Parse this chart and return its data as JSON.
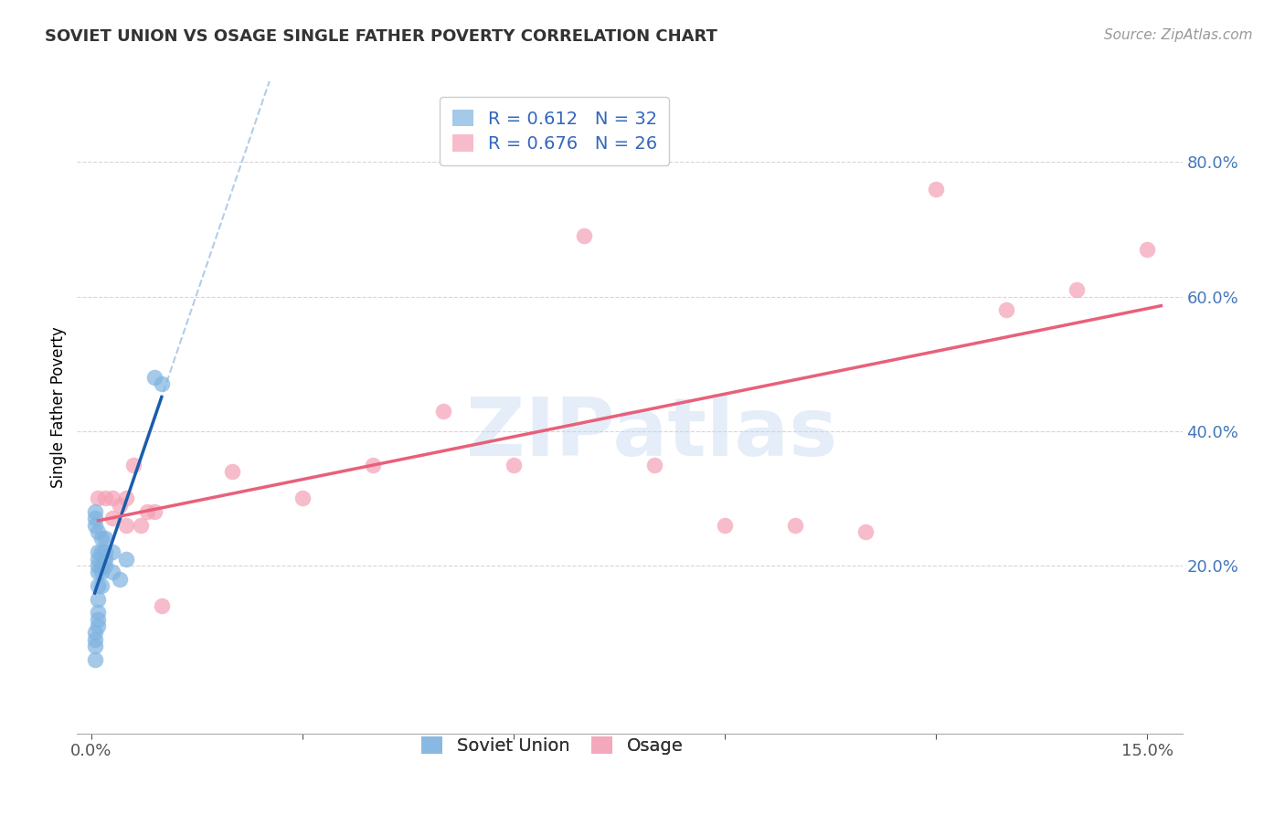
{
  "title": "SOVIET UNION VS OSAGE SINGLE FATHER POVERTY CORRELATION CHART",
  "source": "Source: ZipAtlas.com",
  "ylabel": "Single Father Poverty",
  "y_tick_vals": [
    0.2,
    0.4,
    0.6,
    0.8
  ],
  "y_tick_labels": [
    "20.0%",
    "40.0%",
    "60.0%",
    "80.0%"
  ],
  "x_tick_vals": [
    0.0,
    0.03,
    0.06,
    0.09,
    0.12,
    0.15
  ],
  "x_tick_labels": [
    "0.0%",
    "",
    "",
    "",
    "",
    "15.0%"
  ],
  "xlim": [
    -0.002,
    0.155
  ],
  "ylim": [
    -0.05,
    0.92
  ],
  "watermark": "ZIPatlas",
  "legend_R1": "R = 0.612",
  "legend_N1": "N = 32",
  "legend_R2": "R = 0.676",
  "legend_N2": "N = 26",
  "soviet_color": "#7EB3E0",
  "osage_color": "#F4A0B5",
  "soviet_line_color": "#1A5DAB",
  "osage_line_color": "#E8607A",
  "soviet_x": [
    0.0005,
    0.0005,
    0.0005,
    0.0005,
    0.0005,
    0.0005,
    0.0005,
    0.001,
    0.001,
    0.001,
    0.001,
    0.001,
    0.001,
    0.001,
    0.001,
    0.001,
    0.001,
    0.0015,
    0.0015,
    0.0015,
    0.0015,
    0.0015,
    0.002,
    0.002,
    0.002,
    0.002,
    0.003,
    0.003,
    0.004,
    0.005,
    0.009,
    0.01
  ],
  "soviet_y": [
    0.26,
    0.27,
    0.28,
    0.06,
    0.08,
    0.09,
    0.1,
    0.25,
    0.22,
    0.21,
    0.2,
    0.19,
    0.17,
    0.15,
    0.13,
    0.12,
    0.11,
    0.24,
    0.22,
    0.2,
    0.19,
    0.17,
    0.24,
    0.22,
    0.21,
    0.2,
    0.22,
    0.19,
    0.18,
    0.21,
    0.48,
    0.47
  ],
  "osage_x": [
    0.001,
    0.002,
    0.003,
    0.003,
    0.004,
    0.005,
    0.005,
    0.006,
    0.007,
    0.008,
    0.009,
    0.01,
    0.02,
    0.03,
    0.04,
    0.05,
    0.06,
    0.07,
    0.08,
    0.09,
    0.1,
    0.11,
    0.12,
    0.13,
    0.14,
    0.15
  ],
  "osage_y": [
    0.3,
    0.3,
    0.27,
    0.3,
    0.29,
    0.3,
    0.26,
    0.35,
    0.26,
    0.28,
    0.28,
    0.14,
    0.34,
    0.3,
    0.35,
    0.43,
    0.35,
    0.69,
    0.35,
    0.26,
    0.26,
    0.25,
    0.76,
    0.58,
    0.61,
    0.67
  ],
  "background_color": "#FFFFFF",
  "grid_color": "#BBBBBB"
}
